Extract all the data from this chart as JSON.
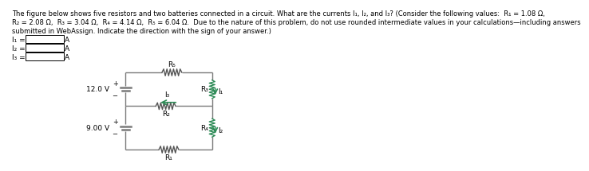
{
  "line1": "The figure below shows five resistors and two batteries connected in a circuit. What are the currents I₁, I₂, and I₃? (Consider the following values:  R₁ = 1.08 Ω,",
  "line2": "R₂ = 2.08 Ω,  R₃ = 3.04 Ω,  R₄ = 4.14 Ω,  R₅ = 6.04 Ω.  Due to the nature of this problem, do not use rounded intermediate values in your calculations—including answers",
  "line3": "submitted in WebAssign. Indicate the direction with the sign of your answer.)",
  "input_labels": [
    "I₁ =",
    "I₂ =",
    "I₃ ="
  ],
  "input_unit": "A",
  "wire_color": "#7a7a7a",
  "arrow_color": "#2e8b57",
  "resistor_wire_color": "#2e8b57",
  "resistor_gray_color": "#555555",
  "battery_color": "#7a7a7a",
  "V1": "12.0 V",
  "V2": "9.00 V",
  "R_labels": [
    "R₅",
    "R₃",
    "R₂",
    "R₄",
    "R₁"
  ],
  "I_labels": [
    "I₁",
    "I₂",
    "I₃"
  ],
  "TL": [
    1.9,
    1.48
  ],
  "TR": [
    3.3,
    1.48
  ],
  "ML": [
    1.9,
    0.93
  ],
  "MR": [
    3.3,
    0.93
  ],
  "BL": [
    1.9,
    0.22
  ],
  "BR": [
    3.3,
    0.22
  ]
}
